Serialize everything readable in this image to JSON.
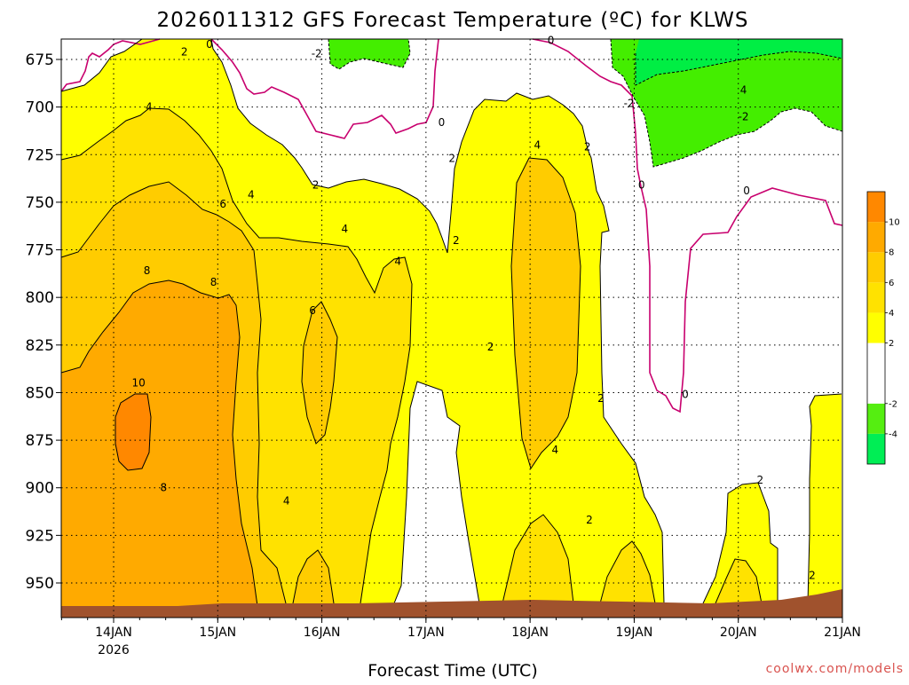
{
  "chart_data": {
    "type": "heatmap",
    "title": "2026011312 GFS Forecast Temperature (ºC) for KLWS",
    "xlabel": "Forecast Time (UTC)",
    "ylabel": "",
    "credit": "coolwx.com/models",
    "x_range_days": [
      13.5,
      21.0
    ],
    "y_range_hpa": [
      663,
      968
    ],
    "y_ticks": [
      {
        "p": 675,
        "label": "675"
      },
      {
        "p": 700,
        "label": "700"
      },
      {
        "p": 725,
        "label": "725"
      },
      {
        "p": 750,
        "label": "750"
      },
      {
        "p": 775,
        "label": "775"
      },
      {
        "p": 800,
        "label": "800"
      },
      {
        "p": 825,
        "label": "825"
      },
      {
        "p": 850,
        "label": "850"
      },
      {
        "p": 875,
        "label": "875"
      },
      {
        "p": 900,
        "label": "900"
      },
      {
        "p": 925,
        "label": "925"
      },
      {
        "p": 950,
        "label": "950"
      }
    ],
    "x_ticks": [
      {
        "d": 14,
        "label": "14JAN",
        "sub": "2026"
      },
      {
        "d": 15,
        "label": "15JAN",
        "sub": ""
      },
      {
        "d": 16,
        "label": "16JAN",
        "sub": ""
      },
      {
        "d": 17,
        "label": "17JAN",
        "sub": ""
      },
      {
        "d": 18,
        "label": "18JAN",
        "sub": ""
      },
      {
        "d": 19,
        "label": "19JAN",
        "sub": ""
      },
      {
        "d": 20,
        "label": "20JAN",
        "sub": ""
      },
      {
        "d": 21,
        "label": "21JAN",
        "sub": ""
      }
    ],
    "colorbar": [
      {
        "label": "-4",
        "lo": -6,
        "hi": -4,
        "color": "#00ee55"
      },
      {
        "label": "-2",
        "lo": -4,
        "hi": -2,
        "color": "#55ee11"
      },
      {
        "label": "",
        "lo": -2,
        "hi": 2,
        "color": "#ffffff"
      },
      {
        "label": "2",
        "lo": 2,
        "hi": 4,
        "color": "#ffff00"
      },
      {
        "label": "4",
        "lo": 4,
        "hi": 6,
        "color": "#ffe200"
      },
      {
        "label": "6",
        "lo": 6,
        "hi": 8,
        "color": "#ffcc00"
      },
      {
        "label": "8",
        "lo": 8,
        "hi": 10,
        "color": "#ffaa00"
      },
      {
        "label": "10",
        "lo": 10,
        "hi": 12,
        "color": "#ff8800"
      }
    ],
    "contour_labels": [
      {
        "t": "2",
        "d": 14.68,
        "p": 671
      },
      {
        "t": "0",
        "d": 14.92,
        "p": 667
      },
      {
        "t": "-2",
        "d": 15.95,
        "p": 672
      },
      {
        "t": "0",
        "d": 17.15,
        "p": 708
      },
      {
        "t": "0",
        "d": 18.2,
        "p": 665
      },
      {
        "t": "-2",
        "d": 18.95,
        "p": 698
      },
      {
        "t": "4",
        "d": 20.05,
        "p": 691
      },
      {
        "t": "-2",
        "d": 20.05,
        "p": 705
      },
      {
        "t": "0",
        "d": 19.07,
        "p": 741
      },
      {
        "t": "0",
        "d": 20.08,
        "p": 744
      },
      {
        "t": "4",
        "d": 14.34,
        "p": 700
      },
      {
        "t": "2",
        "d": 17.25,
        "p": 727
      },
      {
        "t": "4",
        "d": 18.07,
        "p": 720
      },
      {
        "t": "2",
        "d": 18.55,
        "p": 721
      },
      {
        "t": "2",
        "d": 15.94,
        "p": 741
      },
      {
        "t": "4",
        "d": 15.32,
        "p": 746
      },
      {
        "t": "6",
        "d": 15.05,
        "p": 751
      },
      {
        "t": "4",
        "d": 16.22,
        "p": 764
      },
      {
        "t": "2",
        "d": 17.29,
        "p": 770
      },
      {
        "t": "4",
        "d": 16.73,
        "p": 781
      },
      {
        "t": "8",
        "d": 14.32,
        "p": 786
      },
      {
        "t": "8",
        "d": 14.96,
        "p": 792
      },
      {
        "t": "6",
        "d": 15.91,
        "p": 807
      },
      {
        "t": "2",
        "d": 17.62,
        "p": 826
      },
      {
        "t": "10",
        "d": 14.24,
        "p": 845
      },
      {
        "t": "2",
        "d": 18.68,
        "p": 853
      },
      {
        "t": "0",
        "d": 19.49,
        "p": 851
      },
      {
        "t": "4",
        "d": 18.24,
        "p": 880
      },
      {
        "t": "8",
        "d": 14.48,
        "p": 900
      },
      {
        "t": "4",
        "d": 15.66,
        "p": 907
      },
      {
        "t": "2",
        "d": 20.21,
        "p": 896
      },
      {
        "t": "2",
        "d": 18.57,
        "p": 917
      },
      {
        "t": "2",
        "d": 20.71,
        "p": 946
      }
    ]
  }
}
